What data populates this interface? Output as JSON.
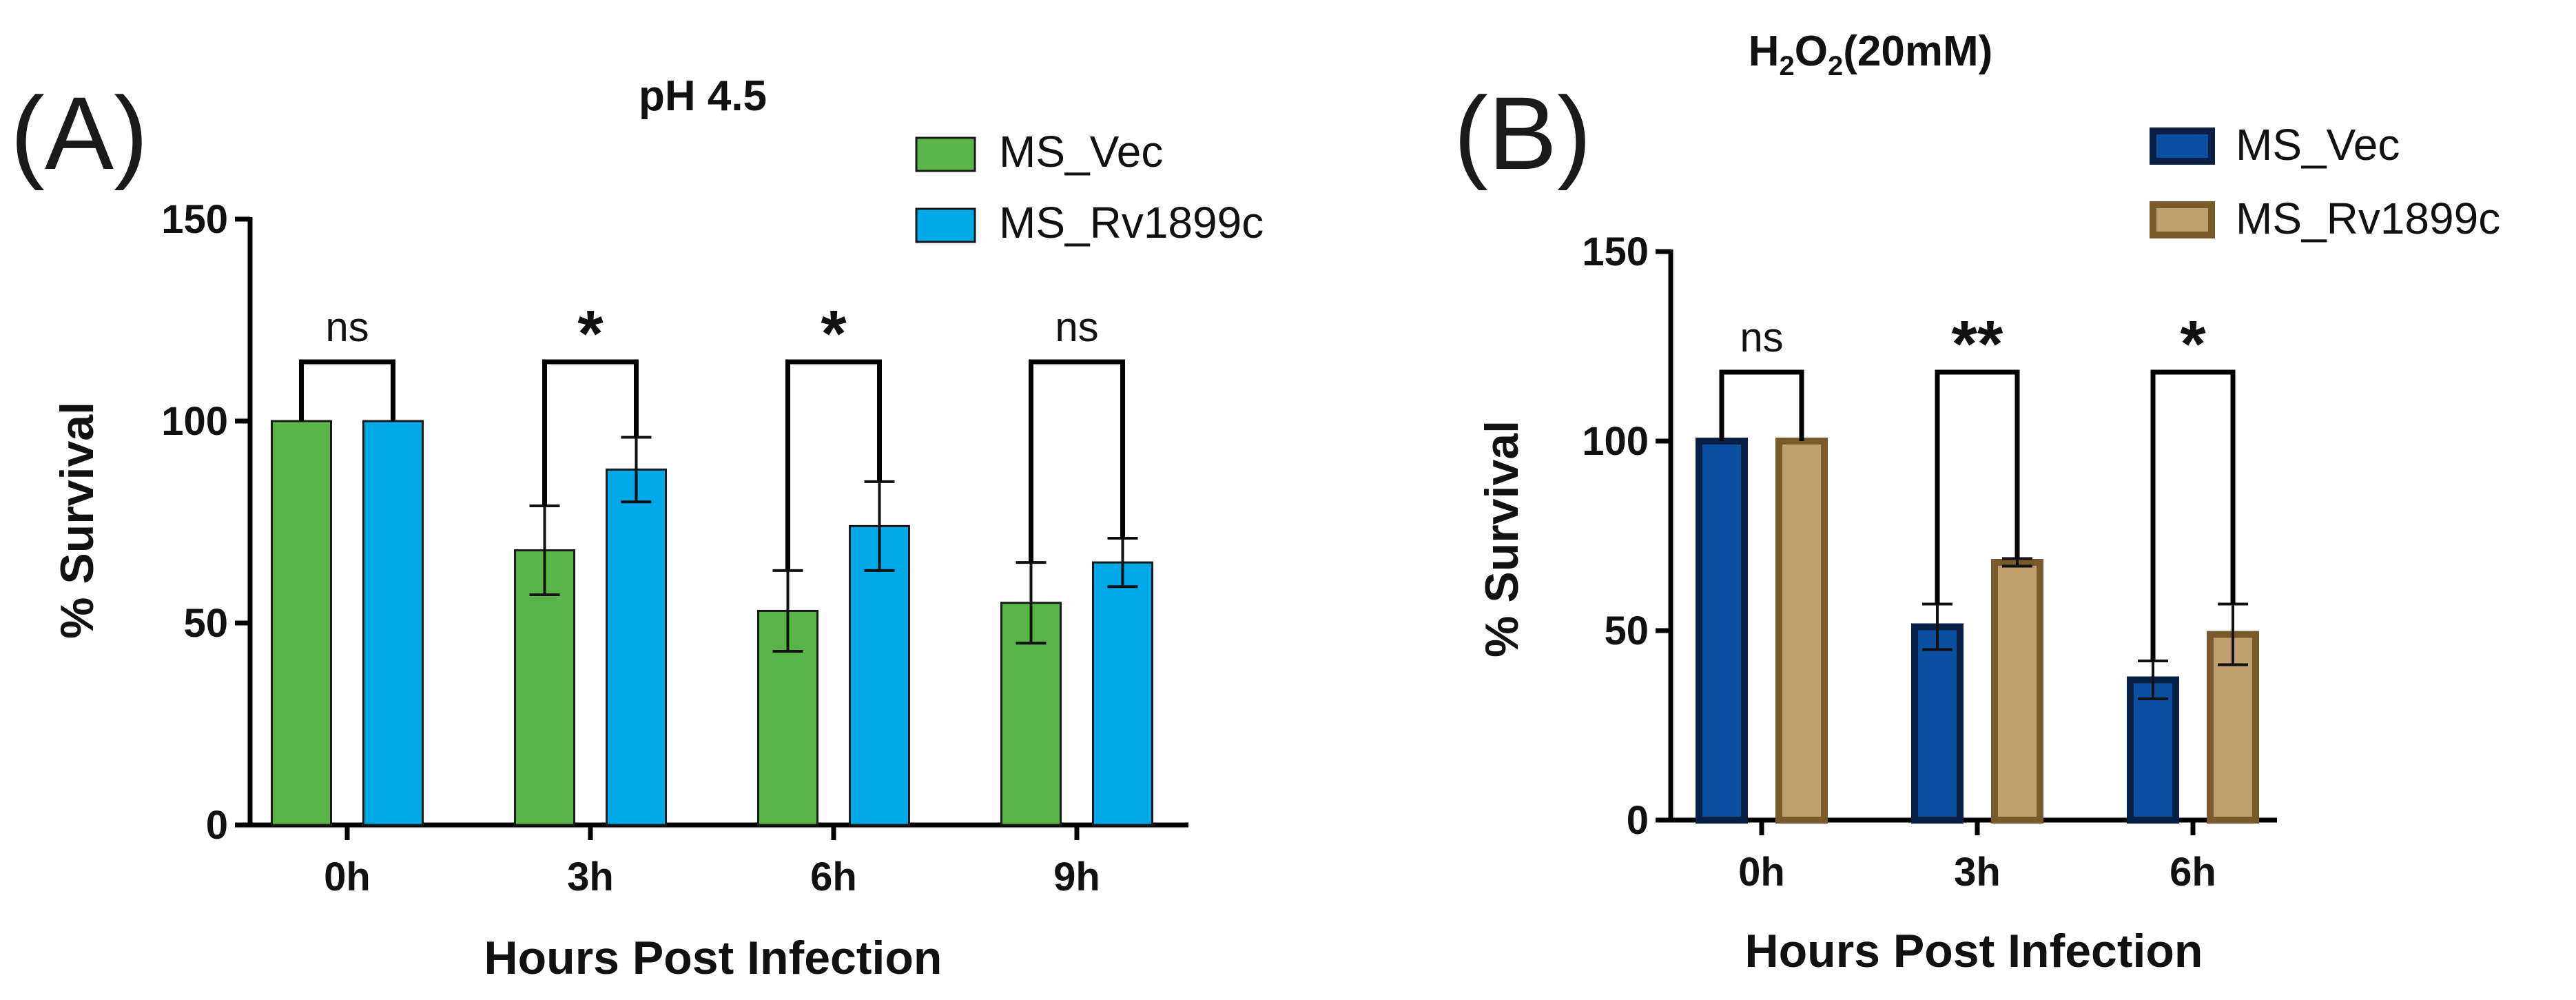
{
  "chart_data": [
    {
      "type": "bar",
      "panel_label": "(A)",
      "title": "pH 4.5",
      "xlabel": "Hours Post Infection",
      "ylabel": "% Survival",
      "ylim": [
        0,
        150
      ],
      "yticks": [
        "0",
        "50",
        "100",
        "150"
      ],
      "categories": [
        "0h",
        "3h",
        "6h",
        "9h"
      ],
      "series": [
        {
          "name": "MS_Vec",
          "color": "#59b548",
          "edge": "#1a1a1a",
          "values": [
            100,
            68,
            53,
            55
          ],
          "errors": [
            0,
            11,
            10,
            10
          ]
        },
        {
          "name": "MS_Rv1899c",
          "color": "#02a9e8",
          "edge": "#1a1a1a",
          "values": [
            100,
            88,
            74,
            65
          ],
          "errors": [
            0,
            8,
            11,
            6
          ]
        }
      ],
      "significance": [
        "ns",
        "*",
        "*",
        "ns"
      ]
    },
    {
      "type": "bar",
      "panel_label": "(B)",
      "title_main": "H",
      "title_sub1": "2",
      "title_mid": "O",
      "title_sub2": "2",
      "title_tail": "(20mM)",
      "xlabel": "Hours Post Infection",
      "ylabel": "% Survival",
      "ylim": [
        0,
        150
      ],
      "yticks": [
        "0",
        "50",
        "100",
        "150"
      ],
      "categories": [
        "0h",
        "3h",
        "6h"
      ],
      "series": [
        {
          "name": "MS_Vec",
          "color": "#0b4fa0",
          "edge": "#0a1f45",
          "values": [
            100,
            51,
            37
          ],
          "errors": [
            0,
            6,
            5
          ]
        },
        {
          "name": "MS_Rv1899c",
          "color": "#c0a070",
          "edge": "#7a5a2a",
          "values": [
            100,
            68,
            49
          ],
          "errors": [
            0,
            1,
            8
          ]
        }
      ],
      "significance": [
        "ns",
        "**",
        "*"
      ]
    }
  ]
}
